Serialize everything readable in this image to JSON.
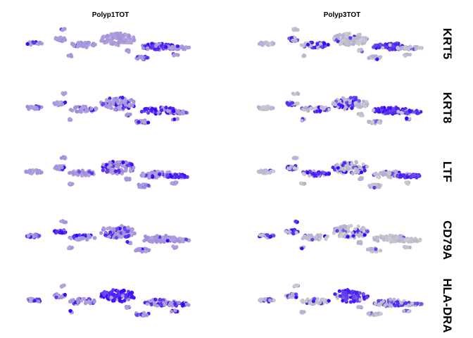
{
  "chart_data": {
    "type": "scatter",
    "columns": [
      "Polyp1TOT",
      "Polyp3TOT"
    ],
    "rows": [
      "KRT5",
      "KRT8",
      "LTF",
      "CD79A",
      "HLA-DRA"
    ],
    "legend": "none",
    "axes": "hidden",
    "grid": false,
    "colors": {
      "low_expression": "#cccccc",
      "high_expression": "#3300ff",
      "polyp1_base": "#b3a6d9"
    },
    "expression": {
      "KRT5": {
        "Polyp1TOT": [
          0.15,
          0.05,
          0.15,
          0.05,
          0.7,
          0.15,
          0.2
        ],
        "Polyp3TOT": [
          0.05,
          0.55,
          0.6,
          0.05,
          0.9,
          0.05,
          0.05
        ]
      },
      "KRT8": {
        "Polyp1TOT": [
          0.15,
          0.15,
          0.15,
          0.25,
          0.65,
          0.25,
          0.45
        ],
        "Polyp3TOT": [
          0.05,
          0.4,
          0.5,
          0.35,
          0.85,
          0.05,
          0.55
        ]
      },
      "LTF": {
        "Polyp1TOT": [
          0.1,
          0.1,
          0.1,
          0.3,
          0.15,
          0.1,
          0.8
        ],
        "Polyp3TOT": [
          0.05,
          0.35,
          0.45,
          0.4,
          0.3,
          0.05,
          0.85
        ]
      },
      "CD79A": {
        "Polyp1TOT": [
          0.5,
          0.6,
          0.3,
          0.35,
          0.1,
          0.1,
          0.1
        ],
        "Polyp3TOT": [
          0.6,
          0.7,
          0.2,
          0.2,
          0.05,
          0.05,
          0.05
        ]
      },
      "HLA-DRA": {
        "Polyp1TOT": [
          0.4,
          0.45,
          0.25,
          0.85,
          0.55,
          0.45,
          0.6
        ],
        "Polyp3TOT": [
          0.3,
          0.45,
          0.3,
          0.9,
          0.5,
          0.2,
          0.7
        ]
      }
    }
  }
}
